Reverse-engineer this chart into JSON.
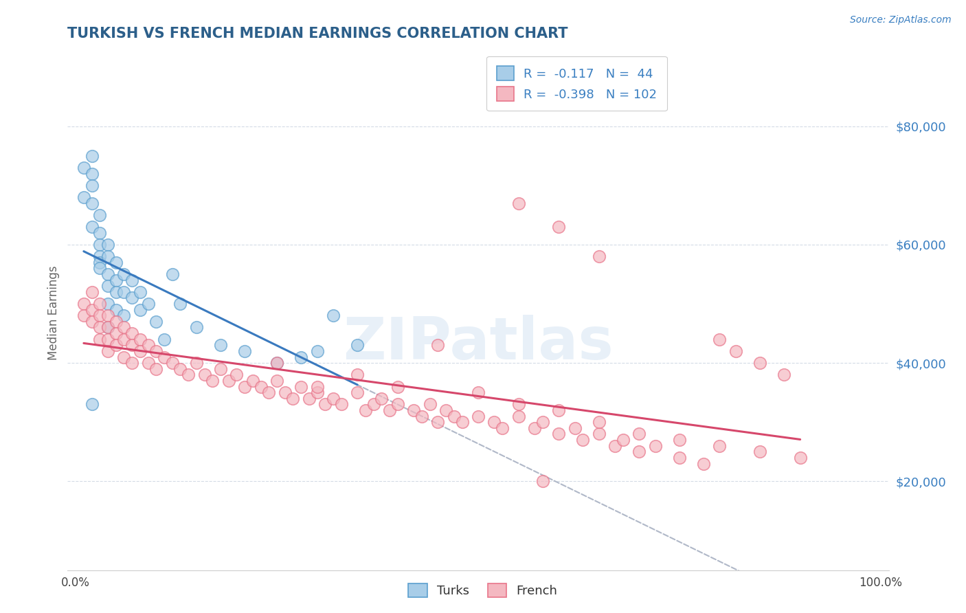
{
  "title": "TURKISH VS FRENCH MEDIAN EARNINGS CORRELATION CHART",
  "ylabel": "Median Earnings",
  "source": "Source: ZipAtlas.com",
  "watermark": "ZIPatlas",
  "turks_R": -0.117,
  "turks_N": 44,
  "french_R": -0.398,
  "french_N": 102,
  "yticks": [
    20000,
    40000,
    60000,
    80000
  ],
  "ytick_labels": [
    "$20,000",
    "$40,000",
    "$60,000",
    "$80,000"
  ],
  "ylim": [
    5000,
    92000
  ],
  "xlim": [
    -0.01,
    1.01
  ],
  "turks_color": "#a8cde8",
  "turks_edge": "#5b9fce",
  "french_color": "#f4b8c1",
  "french_edge": "#e8758a",
  "trend_blue": "#3a7abf",
  "trend_pink": "#d6476b",
  "trend_gray_color": "#b0b8c8",
  "background_color": "#ffffff",
  "grid_color": "#d0d8e4",
  "title_color": "#2c5f8a",
  "legend_text_color": "#3a7fc1",
  "source_color": "#3a7fc1",
  "turks_x": [
    0.01,
    0.01,
    0.02,
    0.02,
    0.02,
    0.02,
    0.02,
    0.03,
    0.03,
    0.03,
    0.03,
    0.03,
    0.03,
    0.04,
    0.04,
    0.04,
    0.04,
    0.04,
    0.05,
    0.05,
    0.05,
    0.05,
    0.06,
    0.06,
    0.06,
    0.07,
    0.07,
    0.08,
    0.08,
    0.09,
    0.1,
    0.11,
    0.13,
    0.15,
    0.18,
    0.21,
    0.25,
    0.28,
    0.3,
    0.35,
    0.02,
    0.12,
    0.32,
    0.04
  ],
  "turks_y": [
    73000,
    68000,
    75000,
    72000,
    70000,
    67000,
    63000,
    65000,
    62000,
    60000,
    58000,
    57000,
    56000,
    60000,
    58000,
    55000,
    53000,
    50000,
    57000,
    54000,
    52000,
    49000,
    55000,
    52000,
    48000,
    54000,
    51000,
    52000,
    49000,
    50000,
    47000,
    44000,
    50000,
    46000,
    43000,
    42000,
    40000,
    41000,
    42000,
    43000,
    33000,
    55000,
    48000,
    46000
  ],
  "french_x": [
    0.01,
    0.01,
    0.02,
    0.02,
    0.02,
    0.03,
    0.03,
    0.03,
    0.03,
    0.04,
    0.04,
    0.04,
    0.04,
    0.05,
    0.05,
    0.05,
    0.06,
    0.06,
    0.06,
    0.07,
    0.07,
    0.07,
    0.08,
    0.08,
    0.09,
    0.09,
    0.1,
    0.1,
    0.11,
    0.12,
    0.13,
    0.14,
    0.15,
    0.16,
    0.17,
    0.18,
    0.19,
    0.2,
    0.21,
    0.22,
    0.23,
    0.24,
    0.25,
    0.26,
    0.27,
    0.28,
    0.29,
    0.3,
    0.31,
    0.32,
    0.33,
    0.35,
    0.36,
    0.37,
    0.38,
    0.39,
    0.4,
    0.42,
    0.43,
    0.44,
    0.45,
    0.46,
    0.47,
    0.48,
    0.5,
    0.52,
    0.53,
    0.55,
    0.57,
    0.58,
    0.6,
    0.62,
    0.63,
    0.65,
    0.67,
    0.68,
    0.7,
    0.72,
    0.75,
    0.78,
    0.8,
    0.82,
    0.85,
    0.88,
    0.4,
    0.5,
    0.55,
    0.6,
    0.65,
    0.7,
    0.75,
    0.8,
    0.85,
    0.9,
    0.55,
    0.6,
    0.65,
    0.58,
    0.45,
    0.35,
    0.3,
    0.25
  ],
  "french_y": [
    50000,
    48000,
    52000,
    49000,
    47000,
    50000,
    48000,
    46000,
    44000,
    48000,
    46000,
    44000,
    42000,
    47000,
    45000,
    43000,
    46000,
    44000,
    41000,
    45000,
    43000,
    40000,
    44000,
    42000,
    43000,
    40000,
    42000,
    39000,
    41000,
    40000,
    39000,
    38000,
    40000,
    38000,
    37000,
    39000,
    37000,
    38000,
    36000,
    37000,
    36000,
    35000,
    37000,
    35000,
    34000,
    36000,
    34000,
    35000,
    33000,
    34000,
    33000,
    35000,
    32000,
    33000,
    34000,
    32000,
    33000,
    32000,
    31000,
    33000,
    30000,
    32000,
    31000,
    30000,
    31000,
    30000,
    29000,
    31000,
    29000,
    30000,
    28000,
    29000,
    27000,
    28000,
    26000,
    27000,
    25000,
    26000,
    24000,
    23000,
    44000,
    42000,
    40000,
    38000,
    36000,
    35000,
    33000,
    32000,
    30000,
    28000,
    27000,
    26000,
    25000,
    24000,
    67000,
    63000,
    58000,
    20000,
    43000,
    38000,
    36000,
    40000
  ]
}
